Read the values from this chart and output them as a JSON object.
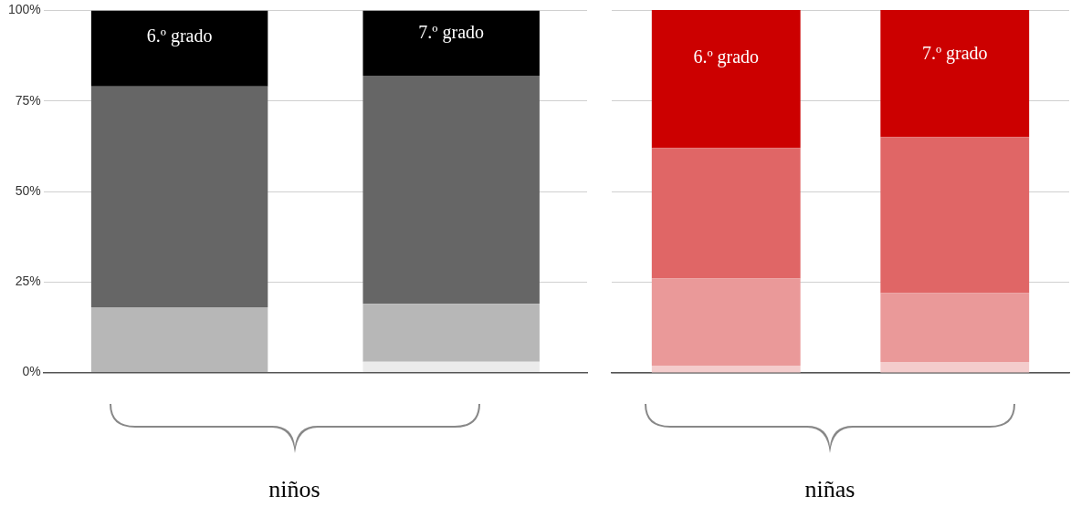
{
  "chart_data": [
    {
      "type": "bar",
      "stacked": true,
      "categories": [
        "6.º grado",
        "7.º grado"
      ],
      "xlabel": "niños",
      "ylim": [
        0,
        100
      ],
      "yticks": [
        {
          "value": 0,
          "label": "0%"
        },
        {
          "value": 25,
          "label": "25%"
        },
        {
          "value": 50,
          "label": "50%"
        },
        {
          "value": 75,
          "label": "75%"
        },
        {
          "value": 100,
          "label": "100%"
        }
      ],
      "grid": "y",
      "legend": false,
      "tick_labels": "y",
      "series": [
        {
          "color": "#ebebeb",
          "values": [
            0,
            3
          ]
        },
        {
          "color": "#b7b7b7",
          "values": [
            18,
            16
          ]
        },
        {
          "color": "#666666",
          "values": [
            61,
            63
          ]
        },
        {
          "color": "#000000",
          "values": [
            21,
            18
          ]
        }
      ]
    },
    {
      "type": "bar",
      "stacked": true,
      "categories": [
        "6.º grado",
        "7.º grado"
      ],
      "xlabel": "niñas",
      "ylim": [
        0,
        100
      ],
      "yticks": [
        0,
        25,
        50,
        75,
        100
      ],
      "grid": "y",
      "legend": false,
      "tick_labels": false,
      "series": [
        {
          "color": "#f4cccc",
          "values": [
            2,
            3
          ]
        },
        {
          "color": "#ea9999",
          "values": [
            24,
            19
          ]
        },
        {
          "color": "#e06666",
          "values": [
            36,
            43
          ]
        },
        {
          "color": "#cc0000",
          "values": [
            38,
            35
          ]
        }
      ]
    }
  ]
}
